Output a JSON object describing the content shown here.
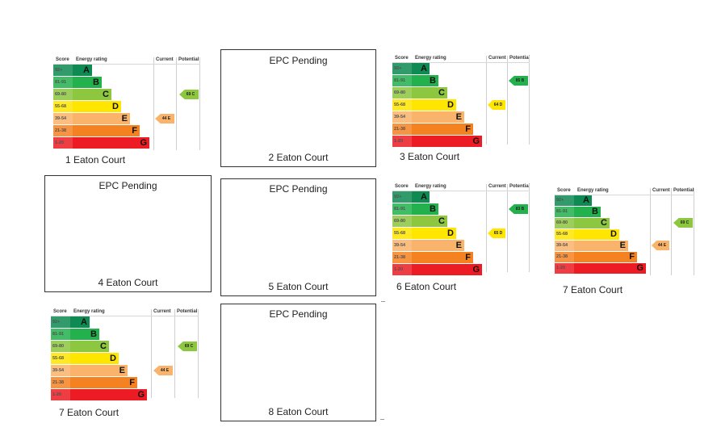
{
  "labels": {
    "score": "Score",
    "energy_rating": "Energy rating",
    "current": "Current",
    "potential": "Potential",
    "pending": "EPC Pending"
  },
  "bands": [
    {
      "score": "92+",
      "letter": "A",
      "color": "#0f8a52"
    },
    {
      "score": "81-91",
      "letter": "B",
      "color": "#22b14c"
    },
    {
      "score": "69-80",
      "letter": "C",
      "color": "#8dc63f"
    },
    {
      "score": "55-68",
      "letter": "D",
      "color": "#ffe600"
    },
    {
      "score": "39-54",
      "letter": "E",
      "color": "#f9b36b"
    },
    {
      "score": "21-38",
      "letter": "F",
      "color": "#f58220"
    },
    {
      "score": "1-20",
      "letter": "G",
      "color": "#ed1c24"
    }
  ],
  "properties": [
    {
      "name": "1 Eaton Court",
      "status": "rated",
      "current": "44 E",
      "potential": "69 C"
    },
    {
      "name": "2 Eaton Court",
      "status": "pending"
    },
    {
      "name": "3 Eaton Court",
      "status": "rated",
      "current": "64 D",
      "potential": "85 B"
    },
    {
      "name": "4 Eaton Court",
      "status": "pending"
    },
    {
      "name": "5 Eaton Court",
      "status": "pending"
    },
    {
      "name": "6 Eaton Court",
      "status": "rated",
      "current": "65 D",
      "potential": "83 B"
    },
    {
      "name": "7 Eaton Court",
      "status": "rated",
      "current": "44 E",
      "potential": "69 C"
    },
    {
      "name": "7 Eaton Court",
      "status": "rated",
      "current": "44 E",
      "potential": "69 C"
    },
    {
      "name": "8 Eaton Court",
      "status": "pending"
    }
  ]
}
